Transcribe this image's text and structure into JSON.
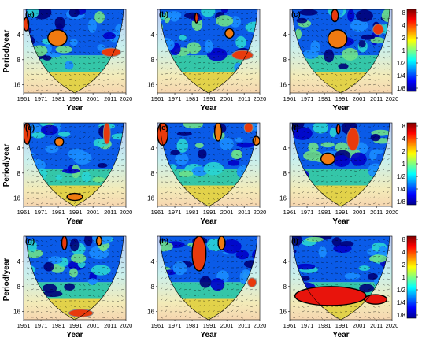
{
  "figure": {
    "y_axis_label": "Period/year",
    "x_axis_label": "Year",
    "colorbar_ticks": [
      "8",
      "4",
      "2",
      "1",
      "1/2",
      "1/4",
      "1/8"
    ],
    "colormap": [
      "#00008f",
      "#0000ff",
      "#0080ff",
      "#00ffff",
      "#80ff80",
      "#ffff00",
      "#ff8000",
      "#ff0000",
      "#800000"
    ]
  },
  "chart_data": [
    {
      "panel_label": "(a)",
      "type": "heatmap",
      "title": "",
      "xlabel": "Year",
      "ylabel": "Period/year",
      "x_ticks": [
        "1961",
        "1971",
        "1981",
        "1991",
        "2001",
        "2011",
        "2020"
      ],
      "y_ticks": [
        "4",
        "8",
        "16"
      ],
      "x_range": [
        1961,
        2020
      ],
      "y_range": [
        2,
        20
      ],
      "y_scale": "log2",
      "colorbar_range": [
        "1/8",
        "8"
      ],
      "significant_regions": [
        {
          "year": [
            1961,
            1964
          ],
          "period": [
            2.5,
            3.6
          ]
        },
        {
          "year": [
            1975,
            1986
          ],
          "period": [
            3.5,
            5.5
          ]
        },
        {
          "year": [
            2006,
            2017
          ],
          "period": [
            5.8,
            7.3
          ]
        }
      ]
    },
    {
      "panel_label": "(b)",
      "type": "heatmap",
      "title": "",
      "xlabel": "Year",
      "ylabel": "Period/year",
      "x_ticks": [
        "1961",
        "1971",
        "1981",
        "1991",
        "2001",
        "2011",
        "2020"
      ],
      "y_ticks": [
        "4",
        "8",
        "16"
      ],
      "x_range": [
        1961,
        2020
      ],
      "y_range": [
        2,
        20
      ],
      "y_scale": "log2",
      "colorbar_range": [
        "1/8",
        "8"
      ],
      "significant_regions": [
        {
          "year": [
            1983,
            1984
          ],
          "period": [
            2.2,
            2.9
          ]
        },
        {
          "year": [
            2000,
            2005
          ],
          "period": [
            3.4,
            4.4
          ]
        },
        {
          "year": [
            2004,
            2016
          ],
          "period": [
            6.2,
            8.0
          ]
        }
      ]
    },
    {
      "panel_label": "(c)",
      "type": "heatmap",
      "title": "",
      "xlabel": "Year",
      "ylabel": "Period/year",
      "x_ticks": [
        "1961",
        "1971",
        "1981",
        "1991",
        "2001",
        "2011",
        "2020"
      ],
      "y_ticks": [
        "4",
        "8",
        "16"
      ],
      "x_range": [
        1961,
        2020
      ],
      "y_range": [
        2,
        20
      ],
      "y_scale": "log2",
      "colorbar_range": [
        "1/8",
        "8"
      ],
      "significant_regions": [
        {
          "year": [
            1985,
            1989
          ],
          "period": [
            2.0,
            2.8
          ]
        },
        {
          "year": [
            1983,
            1994
          ],
          "period": [
            3.5,
            5.8
          ]
        },
        {
          "year": [
            2009,
            2015
          ],
          "period": [
            3.0,
            4.0
          ]
        }
      ]
    },
    {
      "panel_label": "(d)",
      "type": "heatmap",
      "title": "",
      "xlabel": "Year",
      "ylabel": "Period/year",
      "x_ticks": [
        "1961",
        "1971",
        "1981",
        "1991",
        "2001",
        "2011",
        "2020"
      ],
      "y_ticks": [
        "4",
        "8",
        "16"
      ],
      "x_range": [
        1961,
        2020
      ],
      "y_range": [
        2,
        20
      ],
      "y_scale": "log2",
      "colorbar_range": [
        "1/8",
        "8"
      ],
      "significant_regions": [
        {
          "year": [
            1961,
            1965
          ],
          "period": [
            2.0,
            3.6
          ]
        },
        {
          "year": [
            1979,
            1984
          ],
          "period": [
            3.0,
            3.8
          ]
        },
        {
          "year": [
            2007,
            2011
          ],
          "period": [
            2.0,
            3.6
          ]
        },
        {
          "year": [
            1986,
            1995
          ],
          "period": [
            14.0,
            17.0
          ]
        }
      ]
    },
    {
      "panel_label": "(e)",
      "type": "heatmap",
      "title": "",
      "xlabel": "Year",
      "ylabel": "Period/year",
      "x_ticks": [
        "1961",
        "1971",
        "1981",
        "1991",
        "2001",
        "2011",
        "2020"
      ],
      "y_ticks": [
        "4",
        "8",
        "16"
      ],
      "x_range": [
        1961,
        2020
      ],
      "y_range": [
        2,
        20
      ],
      "y_scale": "log2",
      "colorbar_range": [
        "1/8",
        "8"
      ],
      "significant_regions": [
        {
          "year": [
            1961,
            1967
          ],
          "period": [
            2.0,
            3.7
          ]
        },
        {
          "year": [
            1994,
            1998
          ],
          "period": [
            2.0,
            3.3
          ]
        },
        {
          "year": [
            2011,
            2016
          ],
          "period": [
            2.0,
            2.6
          ]
        },
        {
          "year": [
            2016,
            2020
          ],
          "period": [
            2.9,
            3.7
          ]
        }
      ]
    },
    {
      "panel_label": "(f)",
      "type": "heatmap",
      "title": "",
      "xlabel": "Year",
      "ylabel": "Period/year",
      "x_ticks": [
        "1961",
        "1971",
        "1981",
        "1991",
        "2001",
        "2011",
        "2020"
      ],
      "y_ticks": [
        "4",
        "8",
        "16"
      ],
      "x_range": [
        1961,
        2020
      ],
      "y_range": [
        2,
        20
      ],
      "y_scale": "log2",
      "colorbar_range": [
        "1/8",
        "8"
      ],
      "significant_regions": [
        {
          "year": [
            1988,
            1990
          ],
          "period": [
            2.1,
            2.7
          ]
        },
        {
          "year": [
            1979,
            1987
          ],
          "period": [
            4.6,
            6.3
          ]
        },
        {
          "year": [
            1994,
            2001
          ],
          "period": [
            2.3,
            4.3
          ]
        }
      ]
    },
    {
      "panel_label": "(g)",
      "type": "heatmap",
      "title": "",
      "xlabel": "Year",
      "ylabel": "Period/year",
      "x_ticks": [
        "1961",
        "1971",
        "1981",
        "1991",
        "2001",
        "2011",
        "2020"
      ],
      "y_ticks": [
        "4",
        "8",
        "16"
      ],
      "x_range": [
        1961,
        2020
      ],
      "y_range": [
        2,
        20
      ],
      "y_scale": "log2",
      "colorbar_range": [
        "1/8",
        "8"
      ],
      "significant_regions": [
        {
          "year": [
            1983,
            1986
          ],
          "period": [
            2.0,
            2.9
          ]
        },
        {
          "year": [
            2003,
            2006
          ],
          "period": [
            2.0,
            2.6
          ]
        },
        {
          "year": [
            1987,
            2001
          ],
          "period": [
            15.0,
            18.5
          ]
        }
      ]
    },
    {
      "panel_label": "(h)",
      "type": "heatmap",
      "title": "",
      "xlabel": "Year",
      "ylabel": "Period/year",
      "x_ticks": [
        "1961",
        "1971",
        "1981",
        "1991",
        "2001",
        "2011",
        "2020"
      ],
      "y_ticks": [
        "4",
        "8",
        "16"
      ],
      "x_range": [
        1961,
        2020
      ],
      "y_range": [
        2,
        20
      ],
      "y_scale": "log2",
      "colorbar_range": [
        "1/8",
        "8"
      ],
      "significant_regions": [
        {
          "year": [
            1981,
            1989
          ],
          "period": [
            2.0,
            5.2
          ]
        },
        {
          "year": [
            1996,
            2000
          ],
          "period": [
            2.0,
            2.9
          ]
        },
        {
          "year": [
            2013,
            2018
          ],
          "period": [
            6.3,
            8.1
          ]
        }
      ]
    },
    {
      "panel_label": "(i)",
      "type": "heatmap",
      "title": "",
      "xlabel": "Year",
      "ylabel": "Period/year",
      "x_ticks": [
        "1961",
        "1971",
        "1981",
        "1991",
        "2001",
        "2011",
        "2020"
      ],
      "y_ticks": [
        "4",
        "8",
        "16"
      ],
      "x_range": [
        1961,
        2020
      ],
      "y_range": [
        2,
        20
      ],
      "y_scale": "log2",
      "colorbar_range": [
        "1/8",
        "8"
      ],
      "significant_regions": [
        {
          "year": [
            1964,
            2005
          ],
          "period": [
            8.0,
            13.5
          ]
        },
        {
          "year": [
            2004,
            2017
          ],
          "period": [
            10.0,
            13.0
          ]
        }
      ]
    }
  ]
}
